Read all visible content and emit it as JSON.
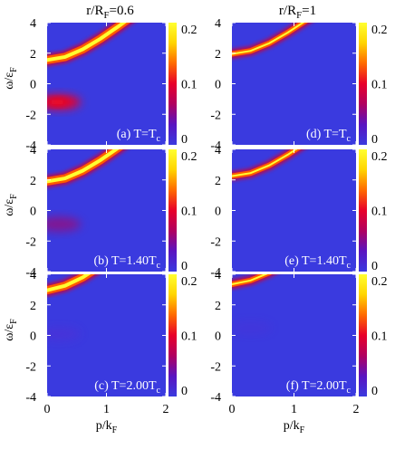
{
  "column_titles": [
    {
      "main": "r/R",
      "sub": "F",
      "tail": "=0.6"
    },
    {
      "main": "r/R",
      "sub": "F",
      "tail": "=1"
    }
  ],
  "y_label": {
    "main": "ω/ε",
    "sub": "F"
  },
  "x_label": {
    "main": "p/k",
    "sub": "F"
  },
  "chart_data": {
    "type": "heatmap",
    "xlim": [
      0,
      2
    ],
    "ylim": [
      -4,
      4
    ],
    "x_ticks": [
      "0",
      "1",
      "2"
    ],
    "y_ticks": [
      "4",
      "2",
      "0",
      "-2",
      "-4"
    ],
    "colorbar_ticks": [
      "0.2",
      "0.1",
      "0"
    ],
    "colorbar_range": [
      0,
      0.2
    ],
    "colormap": [
      "#3a3adf",
      "#5a14c0",
      "#b00060",
      "#e8002a",
      "#ff6a00",
      "#ffd400",
      "#ffff30"
    ],
    "background_color": "#3a3adf",
    "panels": [
      {
        "label": "(a) T=T",
        "label_sub": "c",
        "label_tail": "",
        "band": {
          "p": [
            0.0,
            0.3,
            0.6,
            0.9,
            1.2,
            1.5
          ],
          "omega": [
            1.55,
            1.75,
            2.25,
            2.95,
            3.75,
            4.6
          ],
          "intensity": 0.2
        },
        "blob": {
          "p": 0.2,
          "omega": -1.2,
          "intensity": 0.13
        }
      },
      {
        "label": "(b) T=1.40T",
        "label_sub": "c",
        "label_tail": "",
        "band": {
          "p": [
            0.0,
            0.3,
            0.6,
            0.9,
            1.2,
            1.5
          ],
          "omega": [
            1.9,
            2.1,
            2.6,
            3.3,
            4.1,
            5.0
          ],
          "intensity": 0.2
        },
        "blob": {
          "p": 0.2,
          "omega": -0.9,
          "intensity": 0.08
        }
      },
      {
        "label": "(c) T=2.00T",
        "label_sub": "c",
        "label_tail": "",
        "band": {
          "p": [
            0.0,
            0.3,
            0.6,
            0.9,
            1.2
          ],
          "omega": [
            2.95,
            3.25,
            3.8,
            4.55,
            5.4
          ],
          "intensity": 0.2
        },
        "blob": {
          "p": 0.2,
          "omega": 0.1,
          "intensity": 0.05
        }
      },
      {
        "label": "(d) T=T",
        "label_sub": "c",
        "label_tail": "",
        "band": {
          "p": [
            0.0,
            0.3,
            0.6,
            0.9,
            1.2,
            1.5
          ],
          "omega": [
            1.95,
            2.15,
            2.65,
            3.35,
            4.15,
            5.0
          ],
          "intensity": 0.16
        },
        "blob": null
      },
      {
        "label": "(e) T=1.40T",
        "label_sub": "c",
        "label_tail": "",
        "band": {
          "p": [
            0.0,
            0.3,
            0.6,
            0.9,
            1.2,
            1.5
          ],
          "omega": [
            2.25,
            2.45,
            2.95,
            3.65,
            4.45,
            5.3
          ],
          "intensity": 0.15
        },
        "blob": null
      },
      {
        "label": "(f) T=2.00T",
        "label_sub": "c",
        "label_tail": "",
        "band": {
          "p": [
            0.0,
            0.3,
            0.6,
            0.9,
            1.2
          ],
          "omega": [
            3.35,
            3.6,
            4.1,
            4.8,
            5.6
          ],
          "intensity": 0.18
        },
        "blob": {
          "p": 0.3,
          "omega": 0.5,
          "intensity": 0.03
        }
      }
    ]
  }
}
